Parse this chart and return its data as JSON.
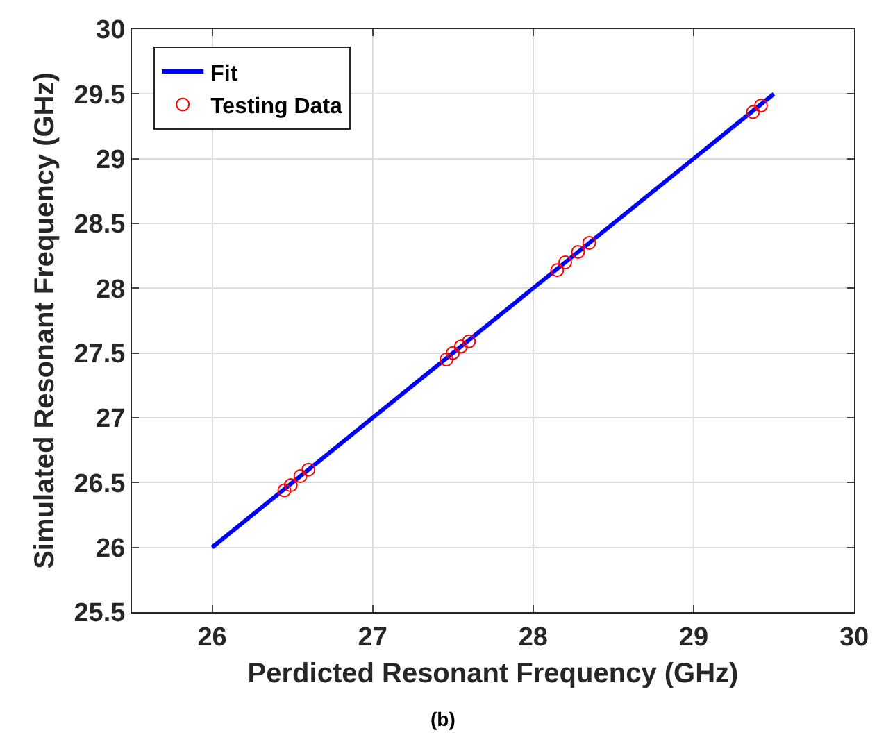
{
  "chart_data": {
    "type": "scatter",
    "xlabel": "Perdicted Resonant Frequency (GHz)",
    "ylabel": "Simulated Resonant Frequency (GHz)",
    "annotations": [
      "(b)"
    ],
    "series": [
      {
        "name": "Fit",
        "type": "line",
        "color": "#0000ff",
        "x": [
          26,
          29.5
        ],
        "values": [
          26,
          29.5
        ],
        "marker": "none",
        "line_style": "solid"
      },
      {
        "name": "Testing Data",
        "color": "#ff0000",
        "x": [
          26.45,
          26.49,
          26.55,
          26.6,
          27.46,
          27.5,
          27.55,
          27.6,
          28.15,
          28.2,
          28.28,
          28.35,
          29.37,
          29.42
        ],
        "values": [
          26.44,
          26.48,
          26.55,
          26.6,
          27.45,
          27.5,
          27.55,
          27.59,
          28.14,
          28.2,
          28.28,
          28.35,
          29.36,
          29.41
        ],
        "marker": "circle"
      }
    ],
    "xlim": [
      25.5,
      30
    ],
    "xticks": [
      26,
      27,
      28,
      29,
      30
    ],
    "ylim": [
      25.5,
      30
    ],
    "yticks": [
      25.5,
      26,
      26.5,
      27,
      27.5,
      28,
      28.5,
      29,
      29.5,
      30
    ],
    "grid": true,
    "legend": "top left"
  }
}
